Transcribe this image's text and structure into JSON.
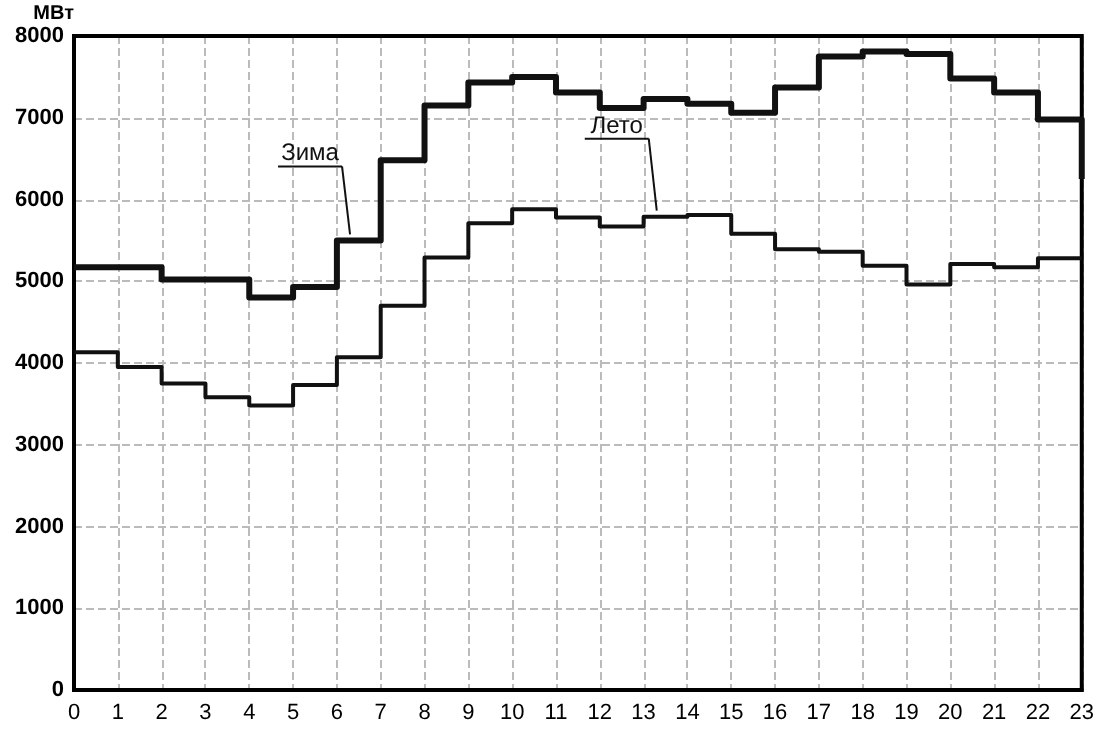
{
  "chart_data": {
    "type": "step",
    "ylabel": "МВт",
    "x": [
      0,
      1,
      2,
      3,
      4,
      5,
      6,
      7,
      8,
      9,
      10,
      11,
      12,
      13,
      14,
      15,
      16,
      17,
      18,
      19,
      20,
      21,
      22,
      23
    ],
    "series": [
      {
        "name": "Зима",
        "color": "#111111",
        "values": [
          5170,
          5170,
          5020,
          5020,
          4800,
          4930,
          5500,
          6480,
          7150,
          7430,
          7500,
          7310,
          7120,
          7230,
          7170,
          7060,
          7370,
          7750,
          7810,
          7780,
          7480,
          7310,
          6980,
          6250
        ]
      },
      {
        "name": "Лето",
        "color": "#111111",
        "values": [
          4130,
          3950,
          3750,
          3580,
          3480,
          3730,
          4070,
          4700,
          5290,
          5710,
          5880,
          5780,
          5670,
          5790,
          5810,
          5580,
          5390,
          5360,
          5190,
          4960,
          5210,
          5170,
          5280,
          5280
        ]
      }
    ],
    "xlim": [
      0,
      23
    ],
    "xticks": [
      0,
      1,
      2,
      3,
      4,
      5,
      6,
      7,
      8,
      9,
      10,
      11,
      12,
      13,
      14,
      15,
      16,
      17,
      18,
      19,
      20,
      21,
      22,
      23
    ],
    "ylim": [
      0,
      8000
    ],
    "yticks": [
      0,
      1000,
      2000,
      3000,
      4000,
      5000,
      6000,
      7000,
      8000
    ],
    "grid": true
  }
}
